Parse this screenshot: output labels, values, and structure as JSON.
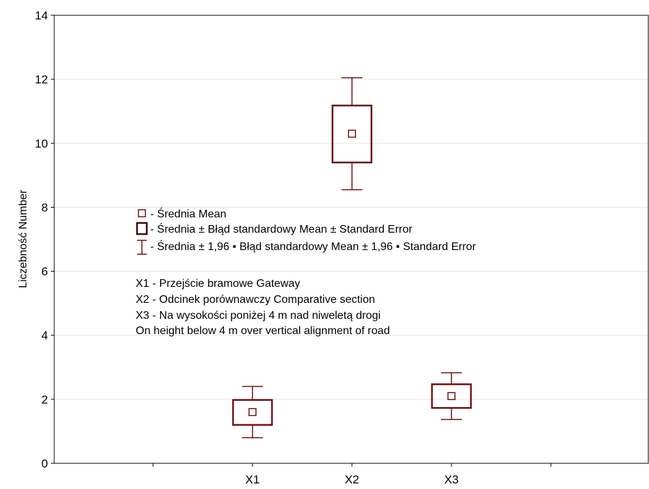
{
  "chart_data": {
    "type": "box",
    "ylabel": "Liczebność Number",
    "ylim": [
      0,
      14
    ],
    "yticks": [
      0,
      2,
      4,
      6,
      8,
      10,
      12,
      14
    ],
    "grid": "horizontal",
    "categories": [
      "X1",
      "X2",
      "X3"
    ],
    "series": [
      {
        "mean": [
          1.6,
          10.3,
          2.1
        ],
        "se_low": [
          1.2,
          9.4,
          1.73
        ],
        "se_high": [
          1.98,
          11.18,
          2.47
        ],
        "ci_low": [
          0.8,
          8.55,
          1.37
        ],
        "ci_high": [
          2.4,
          12.05,
          2.83
        ]
      }
    ],
    "color": "#6b1515",
    "legend": {
      "placement": "center-left",
      "items": [
        {
          "symbol": "mean-marker",
          "label": "- Średnia Mean"
        },
        {
          "symbol": "box",
          "label": "- Średnia ± Błąd standardowy Mean ± Standard Error"
        },
        {
          "symbol": "whisker",
          "label": "- Średnia ± 1,96  • Błąd standardowy Mean ± 1,96 • Standard Error"
        }
      ]
    },
    "notes": [
      "X1 - Przejście bramowe Gateway",
      "X2 - Odcinek porównawczy Comparative section",
      "X3 - Na wysokości poniżej 4 m nad niweletą drogi",
      "On height below 4 m over vertical alignment of road"
    ]
  }
}
